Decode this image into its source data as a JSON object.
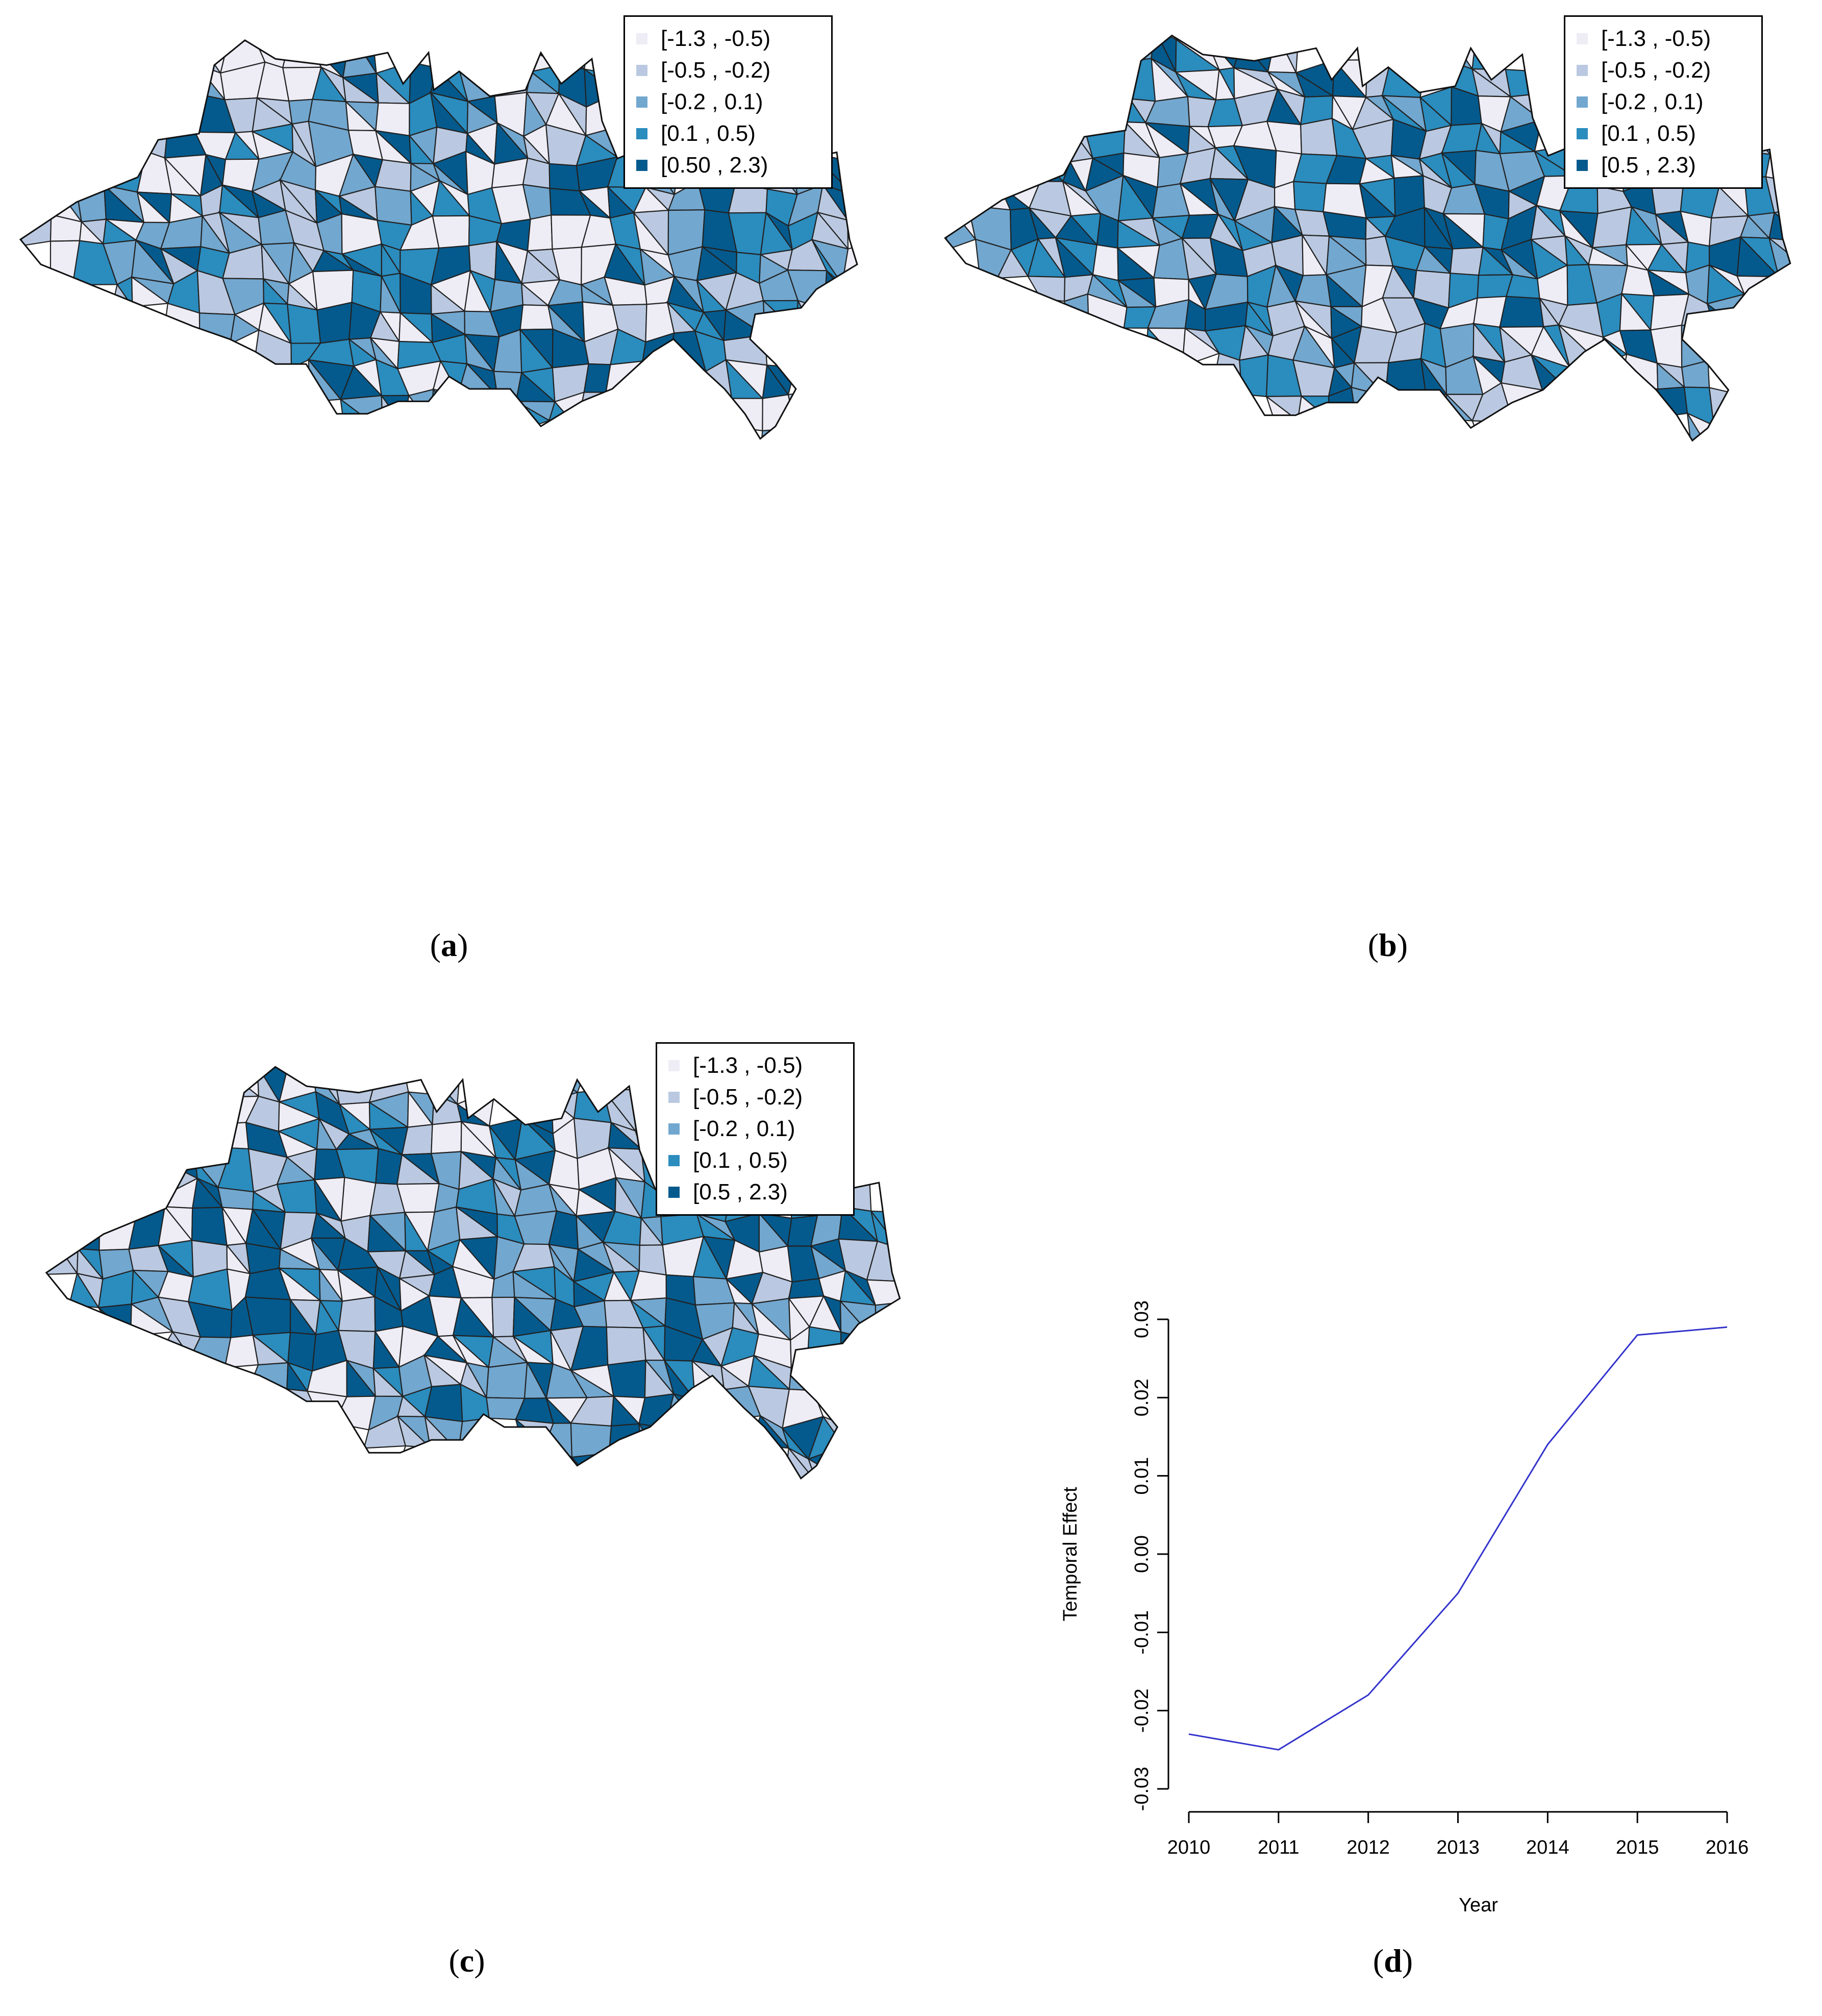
{
  "palette": [
    "#eeedf6",
    "#bac9e1",
    "#72a7cf",
    "#2b8cbe",
    "#045a8d"
  ],
  "panels": [
    {
      "label": "a",
      "legend": [
        "[-1.3 , -0.5)",
        "[-0.5 , -0.2)",
        "[-0.2 , 0.1)",
        "[0.1 , 0.5)",
        "[0.50 , 2.3)"
      ],
      "seed": 11
    },
    {
      "label": "b",
      "legend": [
        "[-1.3 , -0.5)",
        "[-0.5 , -0.2)",
        "[-0.2 , 0.1)",
        "[0.1 , 0.5)",
        "[0.5 , 2.3)"
      ],
      "seed": 29
    },
    {
      "label": "c",
      "legend": [
        "[-1.3 , -0.5)",
        "[-0.5 , -0.2)",
        "[-0.2 , 0.1)",
        "[0.1 , 0.5)",
        "[0.5 , 2.3)"
      ],
      "seed": 47
    }
  ],
  "caption_d": "d",
  "chart_data": {
    "type": "line",
    "x": [
      2010,
      2011,
      2012,
      2013,
      2014,
      2015,
      2016
    ],
    "y": [
      -0.023,
      -0.025,
      -0.018,
      -0.005,
      0.014,
      0.028,
      0.029
    ],
    "xlabel": "Year",
    "ylabel": "Temporal Effect",
    "ylim": [
      -0.03,
      0.03
    ],
    "yticks": [
      -0.03,
      -0.02,
      -0.01,
      0.0,
      0.01,
      0.02,
      0.03
    ],
    "ytick_labels": [
      "-0.03",
      "-0.02",
      "-0.01",
      "0.00",
      "0.01",
      "0.02",
      "0.03"
    ],
    "xtick_labels": [
      "2010",
      "2011",
      "2012",
      "2013",
      "2014",
      "2015",
      "2016"
    ],
    "line_color": "#3333cc"
  }
}
